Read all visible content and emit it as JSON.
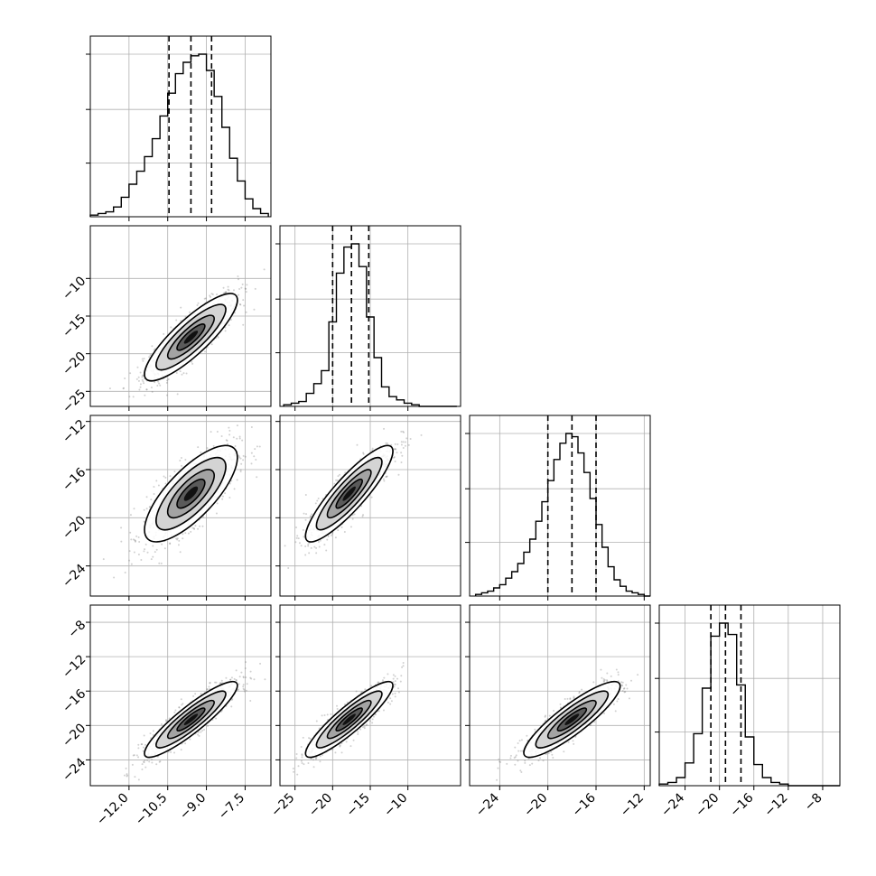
{
  "chart_data": {
    "type": "corner",
    "grid": true,
    "parameters": [
      {
        "range": [
          -13.5,
          -6.5
        ],
        "ticks": [
          -12.0,
          -10.5,
          -9.0,
          -7.5
        ],
        "tick_labels": [
          "−12.0",
          "−10.5",
          "−9.0",
          "−7.5"
        ],
        "quantiles": [
          -10.45,
          -9.6,
          -8.8
        ],
        "hist": {
          "x": [
            -13.35,
            -13.05,
            -12.75,
            -12.45,
            -12.15,
            -11.85,
            -11.55,
            -11.25,
            -10.95,
            -10.65,
            -10.35,
            -10.05,
            -9.75,
            -9.45,
            -9.15,
            -8.85,
            -8.55,
            -8.25,
            -7.95,
            -7.65,
            -7.35,
            -7.05,
            -6.75
          ],
          "values": [
            0.01,
            0.02,
            0.03,
            0.06,
            0.12,
            0.2,
            0.28,
            0.37,
            0.48,
            0.62,
            0.76,
            0.88,
            0.95,
            0.99,
            1.0,
            0.9,
            0.74,
            0.55,
            0.36,
            0.22,
            0.11,
            0.05,
            0.02
          ]
        }
      },
      {
        "range": [
          -27,
          -3
        ],
        "ticks": [
          -25,
          -20,
          -15,
          -10
        ],
        "tick_labels": [
          "−25",
          "−20",
          "−15",
          "−10"
        ],
        "quantiles": [
          -20.0,
          -17.5,
          -15.2
        ],
        "hist": {
          "x": [
            -26,
            -25,
            -24,
            -23,
            -22,
            -21,
            -20,
            -19,
            -18,
            -17,
            -16,
            -15,
            -14,
            -13,
            -12,
            -11,
            -10,
            -9,
            -8,
            -7,
            -6,
            -5,
            -4
          ],
          "values": [
            0.01,
            0.02,
            0.03,
            0.08,
            0.14,
            0.22,
            0.52,
            0.82,
            0.98,
            1.0,
            0.86,
            0.55,
            0.3,
            0.12,
            0.06,
            0.04,
            0.02,
            0.01,
            0.0,
            0.0,
            0.0,
            0.0,
            0.0
          ]
        },
        "ticks_as_row": [
          -10,
          -15,
          -20,
          -25
        ],
        "tick_labels_as_row": [
          "−10",
          "−15",
          "−20",
          "−25"
        ]
      },
      {
        "range": [
          -26.5,
          -11.5
        ],
        "ticks": [
          -24,
          -20,
          -16,
          -12
        ],
        "tick_labels": [
          "−24",
          "−20",
          "−16",
          "−12"
        ],
        "quantiles": [
          -20.0,
          -18.0,
          -16.0
        ],
        "hist": {
          "x": [
            -25.75,
            -25.25,
            -24.75,
            -24.25,
            -23.75,
            -23.25,
            -22.75,
            -22.25,
            -21.75,
            -21.25,
            -20.75,
            -20.25,
            -19.75,
            -19.25,
            -18.75,
            -18.25,
            -17.75,
            -17.25,
            -16.75,
            -16.25,
            -15.75,
            -15.25,
            -14.75,
            -14.25,
            -13.75,
            -13.25,
            -12.75,
            -12.25,
            -11.75
          ],
          "values": [
            0.01,
            0.02,
            0.03,
            0.05,
            0.07,
            0.11,
            0.15,
            0.2,
            0.27,
            0.35,
            0.46,
            0.58,
            0.71,
            0.84,
            0.94,
            1.0,
            0.98,
            0.88,
            0.76,
            0.6,
            0.44,
            0.3,
            0.18,
            0.1,
            0.06,
            0.03,
            0.02,
            0.01,
            0.0
          ]
        },
        "ticks_as_row": [
          -12,
          -16,
          -20,
          -24
        ],
        "tick_labels_as_row": [
          "−12",
          "−16",
          "−20",
          "−24"
        ]
      },
      {
        "range": [
          -27,
          -6
        ],
        "ticks": [
          -24,
          -20,
          -16,
          -12,
          -8
        ],
        "tick_labels": [
          "−24",
          "−20",
          "−16",
          "−12",
          "−8"
        ],
        "quantiles": [
          -21.0,
          -19.3,
          -17.5
        ],
        "hist": {
          "x": [
            -26.5,
            -25.5,
            -24.5,
            -23.5,
            -22.5,
            -21.5,
            -20.5,
            -19.5,
            -18.5,
            -17.5,
            -16.5,
            -15.5,
            -14.5,
            -13.5,
            -12.5,
            -11.5,
            -10.5,
            -9.5,
            -8.5,
            -7.5,
            -6.5
          ],
          "values": [
            0.01,
            0.02,
            0.05,
            0.14,
            0.32,
            0.6,
            0.92,
            1.0,
            0.93,
            0.62,
            0.3,
            0.13,
            0.05,
            0.02,
            0.01,
            0.0,
            0.0,
            0.0,
            0.0,
            0.0,
            0.0
          ]
        },
        "ticks_as_row": [
          -8,
          -12,
          -16,
          -20,
          -24
        ],
        "tick_labels_as_row": [
          "−8",
          "−12",
          "−16",
          "−20",
          "−24"
        ]
      }
    ],
    "pairs": [
      {
        "xparam": 0,
        "yparam": 1,
        "center": [
          -9.6,
          -17.8
        ],
        "sd": [
          0.9,
          2.9
        ],
        "corr": 0.85
      },
      {
        "xparam": 0,
        "yparam": 2,
        "center": [
          -9.6,
          -18.0
        ],
        "sd": [
          0.9,
          2.0
        ],
        "corr": 0.75
      },
      {
        "xparam": 1,
        "yparam": 2,
        "center": [
          -17.8,
          -18.0
        ],
        "sd": [
          2.9,
          2.0
        ],
        "corr": 0.88
      },
      {
        "xparam": 0,
        "yparam": 3,
        "center": [
          -9.6,
          -19.3
        ],
        "sd": [
          0.9,
          2.2
        ],
        "corr": 0.9
      },
      {
        "xparam": 1,
        "yparam": 3,
        "center": [
          -17.8,
          -19.3
        ],
        "sd": [
          2.9,
          2.2
        ],
        "corr": 0.9
      },
      {
        "xparam": 2,
        "yparam": 3,
        "center": [
          -18.0,
          -19.3
        ],
        "sd": [
          2.0,
          2.2
        ],
        "corr": 0.88
      }
    ]
  }
}
